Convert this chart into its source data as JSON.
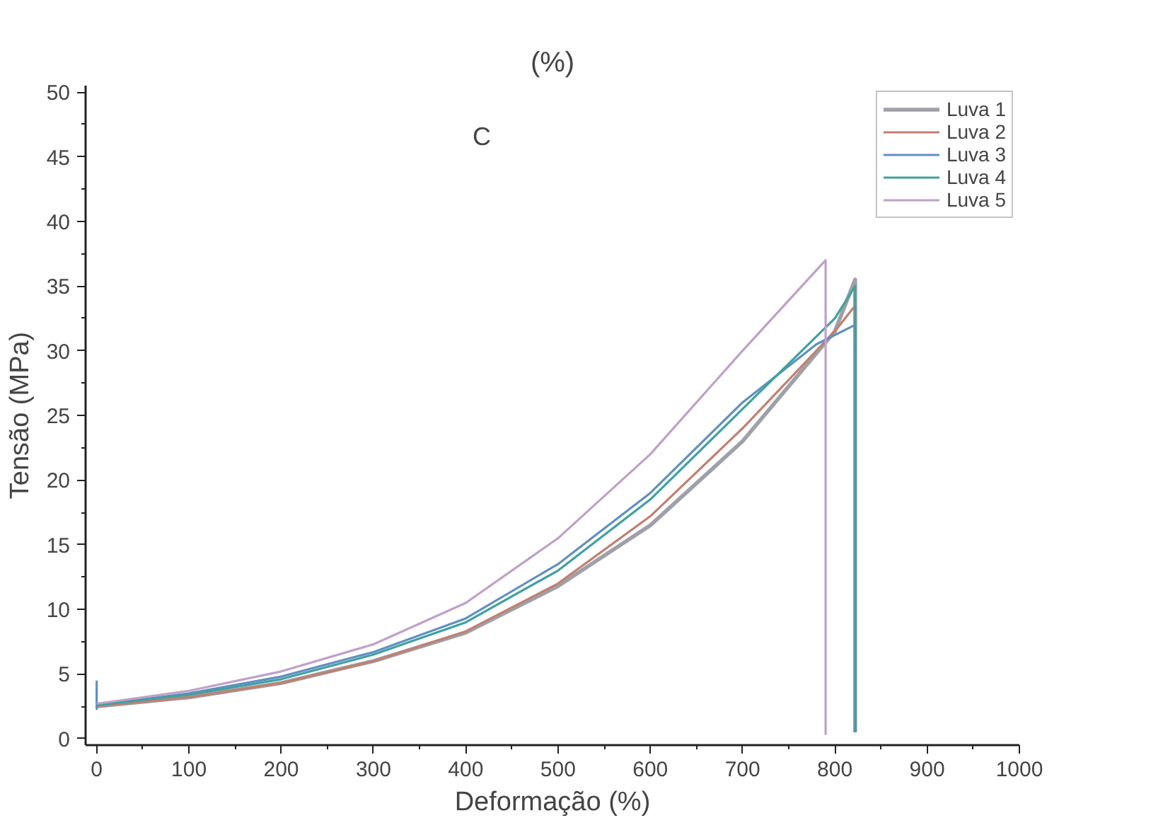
{
  "chart_data": {
    "type": "line",
    "xlabel": "Deformação (%)",
    "ylabel": "Tensão (MPa)",
    "annotations": [
      "(%)",
      "C"
    ],
    "xlim": [
      -12,
      1000
    ],
    "ylim": [
      -0.5,
      50.5
    ],
    "xticks": [
      0,
      100,
      200,
      300,
      400,
      500,
      600,
      700,
      800,
      900,
      1000
    ],
    "yticks": [
      0,
      5,
      10,
      15,
      20,
      25,
      30,
      35,
      40,
      45,
      50
    ],
    "grid": false,
    "legend": "top right",
    "line_style": "solid",
    "marker": "none",
    "series": [
      {
        "name": "Luva 1",
        "color": "#a0a0a8",
        "x": [
          0,
          100,
          200,
          300,
          400,
          500,
          600,
          700,
          800,
          822,
          822
        ],
        "values": [
          2.5,
          3.2,
          4.3,
          6.0,
          8.2,
          11.8,
          16.5,
          23.0,
          31.5,
          35.5,
          0.5
        ]
      },
      {
        "name": "Luva 2",
        "color": "#c08070",
        "x": [
          0,
          100,
          200,
          300,
          400,
          500,
          600,
          700,
          800,
          822,
          822
        ],
        "values": [
          2.5,
          3.2,
          4.3,
          6.0,
          8.3,
          12.0,
          17.2,
          24.0,
          31.5,
          33.5,
          0.5
        ]
      },
      {
        "name": "Luva 3",
        "color": "#6090c0",
        "x": [
          0,
          0,
          0,
          100,
          200,
          300,
          400,
          500,
          600,
          700,
          780,
          822,
          822
        ],
        "values": [
          4.5,
          2.3,
          2.6,
          3.5,
          4.8,
          6.7,
          9.3,
          13.5,
          19.0,
          26.0,
          30.5,
          32.0,
          0.5
        ]
      },
      {
        "name": "Luva 4",
        "color": "#40a0a0",
        "x": [
          0,
          100,
          200,
          300,
          400,
          500,
          600,
          700,
          800,
          822,
          822
        ],
        "values": [
          2.6,
          3.4,
          4.6,
          6.5,
          9.0,
          13.0,
          18.5,
          25.5,
          32.5,
          35.0,
          0.5
        ]
      },
      {
        "name": "Luva 5",
        "color": "#c0a0c8",
        "x": [
          0,
          100,
          200,
          300,
          400,
          500,
          600,
          700,
          790,
          790
        ],
        "values": [
          2.7,
          3.7,
          5.2,
          7.3,
          10.5,
          15.5,
          22.0,
          30.0,
          37.0,
          0.3
        ]
      }
    ]
  }
}
